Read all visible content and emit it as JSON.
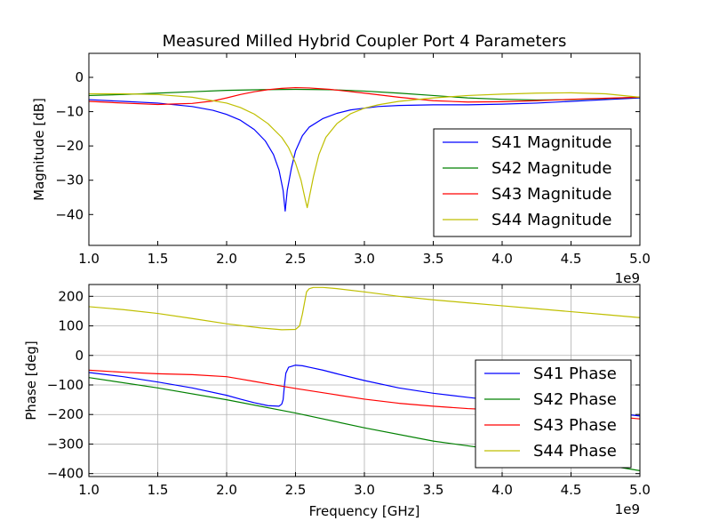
{
  "figure": {
    "title": "Measured Milled Hybrid Coupler Port 4 Parameters"
  },
  "colors": {
    "S41": "#0000ff",
    "S42": "#008000",
    "S43": "#ff0000",
    "S44": "#bfbf00",
    "grid": "#b0b0b0"
  },
  "chart_data": [
    {
      "type": "line",
      "title": "Measured Milled Hybrid Coupler Port 4 Parameters",
      "xlabel": "",
      "ylabel": "Magnitude [dB]",
      "x_offset_label": "1e9",
      "xlim": [
        1.0,
        5.0
      ],
      "ylim": [
        -49,
        7
      ],
      "xticks": [
        1.0,
        1.5,
        2.0,
        2.5,
        3.0,
        3.5,
        4.0,
        4.5,
        5.0
      ],
      "xtick_labels": [
        "1.0",
        "1.5",
        "2.0",
        "2.5",
        "3.0",
        "3.5",
        "4.0",
        "4.5",
        "5.0"
      ],
      "yticks": [
        0,
        -10,
        -20,
        -30,
        -40
      ],
      "ytick_labels": [
        "0",
        "−10",
        "−20",
        "−30",
        "−40"
      ],
      "grid": false,
      "legend_position": "lower-right",
      "series": [
        {
          "name": "S41 Magnitude",
          "color_key": "S41",
          "x": [
            1.0,
            1.25,
            1.5,
            1.75,
            1.9,
            2.0,
            2.1,
            2.2,
            2.28,
            2.34,
            2.38,
            2.41,
            2.425,
            2.44,
            2.47,
            2.5,
            2.55,
            2.6,
            2.7,
            2.8,
            2.9,
            3.0,
            3.1,
            3.25,
            3.5,
            3.75,
            4.0,
            4.25,
            4.5,
            4.75,
            5.0
          ],
          "y": [
            -6.5,
            -7.0,
            -7.5,
            -8.5,
            -9.6,
            -10.8,
            -12.5,
            -15.2,
            -18.5,
            -22.5,
            -27.0,
            -33.0,
            -39.0,
            -33.0,
            -26.5,
            -21.5,
            -17.0,
            -14.5,
            -12.0,
            -10.5,
            -9.5,
            -9.0,
            -8.5,
            -8.2,
            -8.0,
            -8.0,
            -7.8,
            -7.5,
            -7.0,
            -6.5,
            -6.0
          ]
        },
        {
          "name": "S42 Magnitude",
          "color_key": "S42",
          "x": [
            1.0,
            1.25,
            1.5,
            1.75,
            2.0,
            2.25,
            2.5,
            2.75,
            3.0,
            3.25,
            3.5,
            3.75,
            4.0,
            4.25,
            4.5,
            4.75,
            5.0
          ],
          "y": [
            -5.3,
            -5.0,
            -4.6,
            -4.2,
            -3.8,
            -3.6,
            -3.5,
            -3.6,
            -4.0,
            -4.6,
            -5.3,
            -6.0,
            -6.4,
            -6.6,
            -6.5,
            -6.2,
            -5.8
          ]
        },
        {
          "name": "S43 Magnitude",
          "color_key": "S43",
          "x": [
            1.0,
            1.25,
            1.5,
            1.75,
            1.9,
            2.0,
            2.1,
            2.2,
            2.3,
            2.4,
            2.5,
            2.6,
            2.75,
            3.0,
            3.25,
            3.5,
            3.75,
            4.0,
            4.25,
            4.5,
            4.75,
            5.0
          ],
          "y": [
            -7.0,
            -7.5,
            -7.9,
            -7.6,
            -6.9,
            -6.0,
            -5.0,
            -4.2,
            -3.6,
            -3.2,
            -3.0,
            -3.1,
            -3.5,
            -4.6,
            -5.8,
            -6.8,
            -7.2,
            -7.1,
            -6.8,
            -6.4,
            -6.1,
            -5.8
          ]
        },
        {
          "name": "S44 Magnitude",
          "color_key": "S44",
          "x": [
            1.0,
            1.25,
            1.5,
            1.75,
            2.0,
            2.1,
            2.2,
            2.3,
            2.4,
            2.45,
            2.5,
            2.54,
            2.57,
            2.585,
            2.6,
            2.63,
            2.67,
            2.72,
            2.8,
            2.9,
            3.0,
            3.1,
            3.25,
            3.5,
            3.75,
            4.0,
            4.25,
            4.5,
            4.75,
            5.0
          ],
          "y": [
            -4.8,
            -4.8,
            -5.0,
            -5.8,
            -7.5,
            -8.8,
            -10.7,
            -13.5,
            -17.5,
            -20.5,
            -25.0,
            -30.0,
            -35.5,
            -38.0,
            -35.0,
            -29.0,
            -22.5,
            -17.5,
            -13.5,
            -10.6,
            -9.0,
            -8.0,
            -7.0,
            -6.0,
            -5.3,
            -4.9,
            -4.6,
            -4.5,
            -4.8,
            -5.8
          ]
        }
      ]
    },
    {
      "type": "line",
      "title": "",
      "xlabel": "Frequency [GHz]",
      "ylabel": "Phase [deg]",
      "x_offset_label": "1e9",
      "xlim": [
        1.0,
        5.0
      ],
      "ylim": [
        -410,
        240
      ],
      "xticks": [
        1.0,
        1.5,
        2.0,
        2.5,
        3.0,
        3.5,
        4.0,
        4.5,
        5.0
      ],
      "xtick_labels": [
        "1.0",
        "1.5",
        "2.0",
        "2.5",
        "3.0",
        "3.5",
        "4.0",
        "4.5",
        "5.0"
      ],
      "yticks": [
        200,
        100,
        0,
        -100,
        -200,
        -300,
        -400
      ],
      "ytick_labels": [
        "200",
        "100",
        "0",
        "−100",
        "−200",
        "−300",
        "−400"
      ],
      "grid": true,
      "legend_position": "lower-right",
      "series": [
        {
          "name": "S41 Phase",
          "color_key": "S41",
          "x": [
            1.0,
            1.25,
            1.5,
            1.75,
            2.0,
            2.1,
            2.2,
            2.3,
            2.38,
            2.4,
            2.41,
            2.42,
            2.43,
            2.45,
            2.5,
            2.55,
            2.6,
            2.7,
            2.8,
            3.0,
            3.25,
            3.5,
            3.75,
            4.0,
            4.25,
            4.5,
            4.75,
            5.0
          ],
          "y": [
            -58,
            -72,
            -90,
            -110,
            -135,
            -148,
            -160,
            -170,
            -172,
            -165,
            -150,
            -100,
            -60,
            -40,
            -33,
            -35,
            -40,
            -50,
            -62,
            -85,
            -110,
            -128,
            -142,
            -155,
            -168,
            -180,
            -192,
            -205
          ]
        },
        {
          "name": "S42 Phase",
          "color_key": "S42",
          "x": [
            1.0,
            1.5,
            2.0,
            2.5,
            3.0,
            3.5,
            4.0,
            4.5,
            5.0
          ],
          "y": [
            -75,
            -110,
            -150,
            -195,
            -245,
            -290,
            -322,
            -352,
            -390
          ]
        },
        {
          "name": "S43 Phase",
          "color_key": "S43",
          "x": [
            1.0,
            1.25,
            1.5,
            1.75,
            2.0,
            2.1,
            2.2,
            2.3,
            2.4,
            2.5,
            2.75,
            3.0,
            3.25,
            3.5,
            3.75,
            4.0,
            4.25,
            4.5,
            4.75,
            5.0
          ],
          "y": [
            -50,
            -57,
            -62,
            -65,
            -72,
            -80,
            -88,
            -96,
            -104,
            -112,
            -130,
            -148,
            -162,
            -172,
            -180,
            -185,
            -190,
            -196,
            -204,
            -215
          ]
        },
        {
          "name": "S44 Phase",
          "color_key": "S44",
          "x": [
            1.0,
            1.25,
            1.5,
            1.75,
            2.0,
            2.25,
            2.4,
            2.5,
            2.53,
            2.55,
            2.57,
            2.58,
            2.6,
            2.63,
            2.7,
            2.8,
            3.0,
            3.25,
            3.5,
            3.75,
            4.0,
            4.25,
            4.5,
            4.75,
            5.0
          ],
          "y": [
            165,
            155,
            142,
            125,
            107,
            93,
            87,
            88,
            100,
            140,
            190,
            215,
            226,
            230,
            230,
            226,
            215,
            200,
            188,
            178,
            168,
            158,
            148,
            138,
            128
          ]
        }
      ]
    }
  ]
}
